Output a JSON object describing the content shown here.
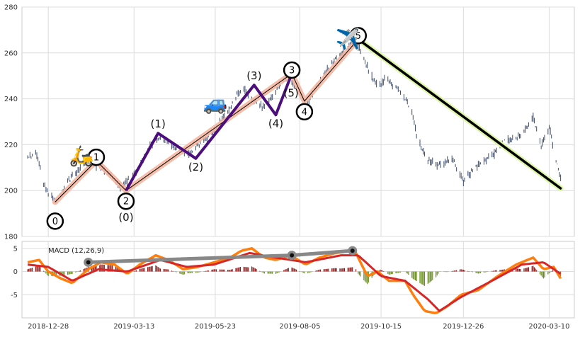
{
  "chart_data": [
    {
      "type": "ohlc",
      "title": "",
      "xlabel": "",
      "ylabel": "",
      "x_axis_type": "date",
      "x_ticks": [
        "2018-12-28",
        "2019-03-13",
        "2019-05-23",
        "2019-08-05",
        "2019-10-15",
        "2019-12-26",
        "2020-03-10"
      ],
      "xlim": [
        "2018-12-05",
        "2020-04-01"
      ],
      "ylim": [
        180,
        280
      ],
      "y_ticks": [
        180,
        200,
        220,
        240,
        260,
        280
      ],
      "grid": true,
      "price_path": [
        [
          "2018-12-10",
          214
        ],
        [
          "2018-12-17",
          217
        ],
        [
          "2018-12-24",
          203
        ],
        [
          "2018-12-28",
          199
        ],
        [
          "2019-01-03",
          195
        ],
        [
          "2019-01-10",
          200
        ],
        [
          "2019-01-15",
          205
        ],
        [
          "2019-01-22",
          208
        ],
        [
          "2019-01-31",
          214
        ],
        [
          "2019-02-10",
          210
        ],
        [
          "2019-02-20",
          207
        ],
        [
          "2019-03-01",
          201
        ],
        [
          "2019-03-13",
          207
        ],
        [
          "2019-03-22",
          215
        ],
        [
          "2019-04-01",
          223
        ],
        [
          "2019-04-10",
          222
        ],
        [
          "2019-04-20",
          218
        ],
        [
          "2019-04-30",
          216
        ],
        [
          "2019-05-10",
          220
        ],
        [
          "2019-05-23",
          227
        ],
        [
          "2019-06-05",
          236
        ],
        [
          "2019-06-15",
          245
        ],
        [
          "2019-06-25",
          240
        ],
        [
          "2019-07-05",
          236
        ],
        [
          "2019-07-15",
          244
        ],
        [
          "2019-07-25",
          250
        ],
        [
          "2019-08-05",
          242
        ],
        [
          "2019-08-12",
          238
        ],
        [
          "2019-08-20",
          245
        ],
        [
          "2019-09-01",
          255
        ],
        [
          "2019-09-10",
          260
        ],
        [
          "2019-09-20",
          265
        ],
        [
          "2019-09-26",
          262
        ],
        [
          "2019-10-03",
          254
        ],
        [
          "2019-10-12",
          245
        ],
        [
          "2019-10-20",
          249
        ],
        [
          "2019-11-01",
          243
        ],
        [
          "2019-11-10",
          236
        ],
        [
          "2019-11-16",
          222
        ],
        [
          "2019-11-25",
          213
        ],
        [
          "2019-12-05",
          211
        ],
        [
          "2019-12-16",
          214
        ],
        [
          "2019-12-26",
          204
        ],
        [
          "2020-01-05",
          210
        ],
        [
          "2020-01-20",
          215
        ],
        [
          "2020-02-01",
          222
        ],
        [
          "2020-02-14",
          224
        ],
        [
          "2020-02-25",
          232
        ],
        [
          "2020-03-03",
          220
        ],
        [
          "2020-03-10",
          228
        ],
        [
          "2020-03-16",
          212
        ],
        [
          "2020-03-20",
          206
        ]
      ],
      "primary_waves": [
        {
          "label": "0",
          "date": "2019-01-03",
          "price": 195
        },
        {
          "label": "1",
          "date": "2019-02-08",
          "price": 213
        },
        {
          "label": "2",
          "date": "2019-03-06",
          "price": 200
        },
        {
          "label": "3",
          "date": "2019-07-29",
          "price": 251
        },
        {
          "label": "4",
          "date": "2019-08-09",
          "price": 239
        },
        {
          "label": "5",
          "date": "2019-09-25",
          "price": 266
        }
      ],
      "intermediate_waves": [
        {
          "label": "(0)",
          "date": "2019-03-06",
          "price": 200
        },
        {
          "label": "(1)",
          "date": "2019-04-03",
          "price": 225
        },
        {
          "label": "(2)",
          "date": "2019-05-06",
          "price": 214
        },
        {
          "label": "(3)",
          "date": "2019-06-26",
          "price": 246
        },
        {
          "label": "(4)",
          "date": "2019-07-15",
          "price": 233
        },
        {
          "label": "(5)",
          "date": "2019-07-29",
          "price": 251
        }
      ],
      "corrective_line": [
        {
          "date": "2019-09-25",
          "price": 266
        },
        {
          "date": "2020-03-20",
          "price": 201
        }
      ],
      "markers": [
        {
          "icon": "scooter-icon",
          "date": "2019-01-26",
          "price": 215
        },
        {
          "icon": "car-icon",
          "date": "2019-05-23",
          "price": 238
        },
        {
          "icon": "airplane-icon",
          "date": "2019-09-16",
          "price": 266
        }
      ],
      "colors": {
        "candles": "#3b4a68",
        "primary_band": "#f4b7a2",
        "intermediate": "#4b0e7c",
        "corrective": "#000000",
        "corrective_band": "#ddf7a8",
        "grid": "#dcdcdc"
      }
    },
    {
      "type": "macd",
      "title": "MACD (12,26,9)",
      "ylim": [
        -10,
        6.5
      ],
      "y_ticks": [
        -5,
        0,
        5
      ],
      "grid": true,
      "macd_line": [
        [
          "2018-12-10",
          2
        ],
        [
          "2018-12-20",
          2.5
        ],
        [
          "2018-12-28",
          0
        ],
        [
          "2019-01-08",
          -1.5
        ],
        [
          "2019-01-18",
          -2.5
        ],
        [
          "2019-02-01",
          0.5
        ],
        [
          "2019-02-12",
          2
        ],
        [
          "2019-02-24",
          1.5
        ],
        [
          "2019-03-07",
          -0.5
        ],
        [
          "2019-03-18",
          1.5
        ],
        [
          "2019-04-01",
          3.5
        ],
        [
          "2019-04-12",
          2.5
        ],
        [
          "2019-04-25",
          0.5
        ],
        [
          "2019-05-08",
          1
        ],
        [
          "2019-05-22",
          2
        ],
        [
          "2019-06-05",
          3
        ],
        [
          "2019-06-15",
          4.5
        ],
        [
          "2019-06-24",
          5
        ],
        [
          "2019-07-05",
          3
        ],
        [
          "2019-07-15",
          2.5
        ],
        [
          "2019-07-28",
          3.5
        ],
        [
          "2019-08-10",
          1.5
        ],
        [
          "2019-08-22",
          3
        ],
        [
          "2019-09-05",
          4
        ],
        [
          "2019-09-22",
          4.5
        ],
        [
          "2019-10-03",
          -1
        ],
        [
          "2019-10-12",
          0
        ],
        [
          "2019-10-22",
          -2
        ],
        [
          "2019-11-05",
          -2
        ],
        [
          "2019-11-12",
          -5
        ],
        [
          "2019-11-22",
          -8.5
        ],
        [
          "2019-12-02",
          -9
        ],
        [
          "2019-12-12",
          -7.5
        ],
        [
          "2019-12-24",
          -5
        ],
        [
          "2020-01-08",
          -4
        ],
        [
          "2020-01-25",
          -1
        ],
        [
          "2020-02-10",
          1.5
        ],
        [
          "2020-02-25",
          3
        ],
        [
          "2020-03-05",
          0.5
        ],
        [
          "2020-03-14",
          1
        ],
        [
          "2020-03-20",
          -1.5
        ]
      ],
      "signal_line": [
        [
          "2018-12-10",
          1.5
        ],
        [
          "2018-12-28",
          1
        ],
        [
          "2019-01-18",
          -2
        ],
        [
          "2019-02-10",
          0.5
        ],
        [
          "2019-03-07",
          0
        ],
        [
          "2019-04-05",
          2.5
        ],
        [
          "2019-04-28",
          1
        ],
        [
          "2019-05-22",
          1.5
        ],
        [
          "2019-06-22",
          4
        ],
        [
          "2019-07-15",
          3
        ],
        [
          "2019-08-10",
          2
        ],
        [
          "2019-09-10",
          3.5
        ],
        [
          "2019-09-25",
          3.5
        ],
        [
          "2019-10-15",
          -1
        ],
        [
          "2019-11-05",
          -2
        ],
        [
          "2019-11-25",
          -6
        ],
        [
          "2019-12-05",
          -8.5
        ],
        [
          "2019-12-24",
          -5.5
        ],
        [
          "2020-01-20",
          -2
        ],
        [
          "2020-02-15",
          1.5
        ],
        [
          "2020-03-05",
          2
        ],
        [
          "2020-03-20",
          -0.5
        ]
      ],
      "divergence_line": [
        {
          "date": "2019-02-01",
          "value": 2
        },
        {
          "date": "2019-07-29",
          "value": 3.5
        },
        {
          "date": "2019-09-20",
          "value": 4.5
        }
      ],
      "colors": {
        "macd": "#ff7f0e",
        "signal": "#d62728",
        "hist_pos": "#8b1a1a",
        "hist_neg": "#6b8e23",
        "divergence": "#888888",
        "grid": "#dcdcdc"
      }
    }
  ]
}
